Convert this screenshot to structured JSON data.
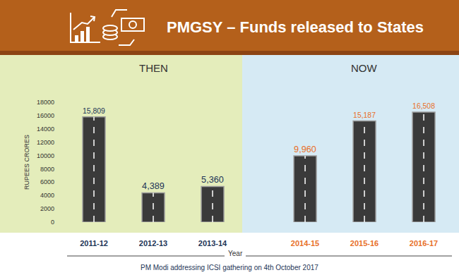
{
  "chart_data": {
    "type": "bar",
    "title": "PMGSY – Funds released to States",
    "categories": [
      "2011-12",
      "2012-13",
      "2013-14",
      "2014-15",
      "2015-16",
      "2016-17"
    ],
    "groups": [
      "THEN",
      "THEN",
      "THEN",
      "NOW",
      "NOW",
      "NOW"
    ],
    "values": [
      15809,
      4389,
      5360,
      9960,
      15187,
      16508
    ],
    "value_labels": [
      "15,809",
      "4,389",
      "5,360",
      "9,960",
      "15,187",
      "16,508"
    ],
    "color": "#3a3a3a",
    "xlabel": "Year",
    "ylabel": "RUPEES CRORES",
    "ylim": [
      0,
      18000
    ],
    "yticks": [
      0,
      2000,
      4000,
      6000,
      8000,
      10000,
      12000,
      14000,
      16000,
      18000
    ],
    "grid": false,
    "data_labels": true,
    "annotations": [
      "PM Modi addressing ICSI gathering on 4th October 2017"
    ]
  }
}
